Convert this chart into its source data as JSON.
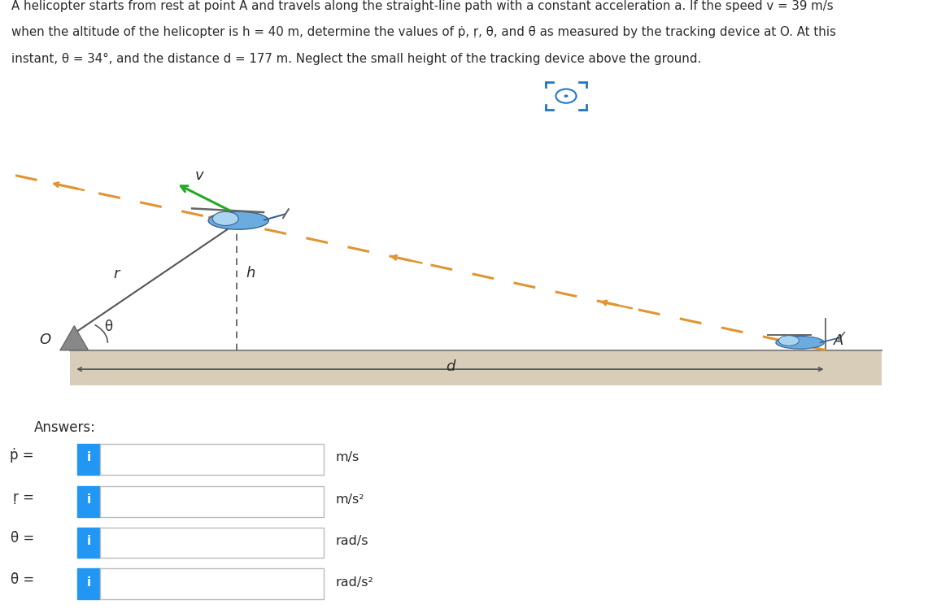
{
  "bg_color": "#ffffff",
  "text_color": "#2a2a2a",
  "ground_color": "#d8cdb8",
  "ground_top_color": "#bbbbbb",
  "orange_color": "#e09530",
  "green_color": "#22aa22",
  "line_color": "#555555",
  "blue_btn": "#2196F3",
  "box_border": "#bbbbbb",
  "cam_color": "#2277cc",
  "title_lines": [
    "A helicopter starts from rest at point A and travels along the straight-line path with a constant acceleration a. If the speed v = 39 m/s",
    "when the altitude of the helicopter is h = 40 m, determine the values of ṗ, ṛ, θ̇, and θ̈ as measured by the tracking device at O. At this",
    "instant, θ = 34°, and the distance d = 177 m. Neglect the small height of the tracking device above the ground."
  ],
  "answer_labels": [
    "ṗ =",
    "ṛ =",
    "θ̇ =",
    "θ̈ ="
  ],
  "answer_units": [
    "m/s",
    "m/s²",
    "rad/s",
    "rad/s²"
  ]
}
